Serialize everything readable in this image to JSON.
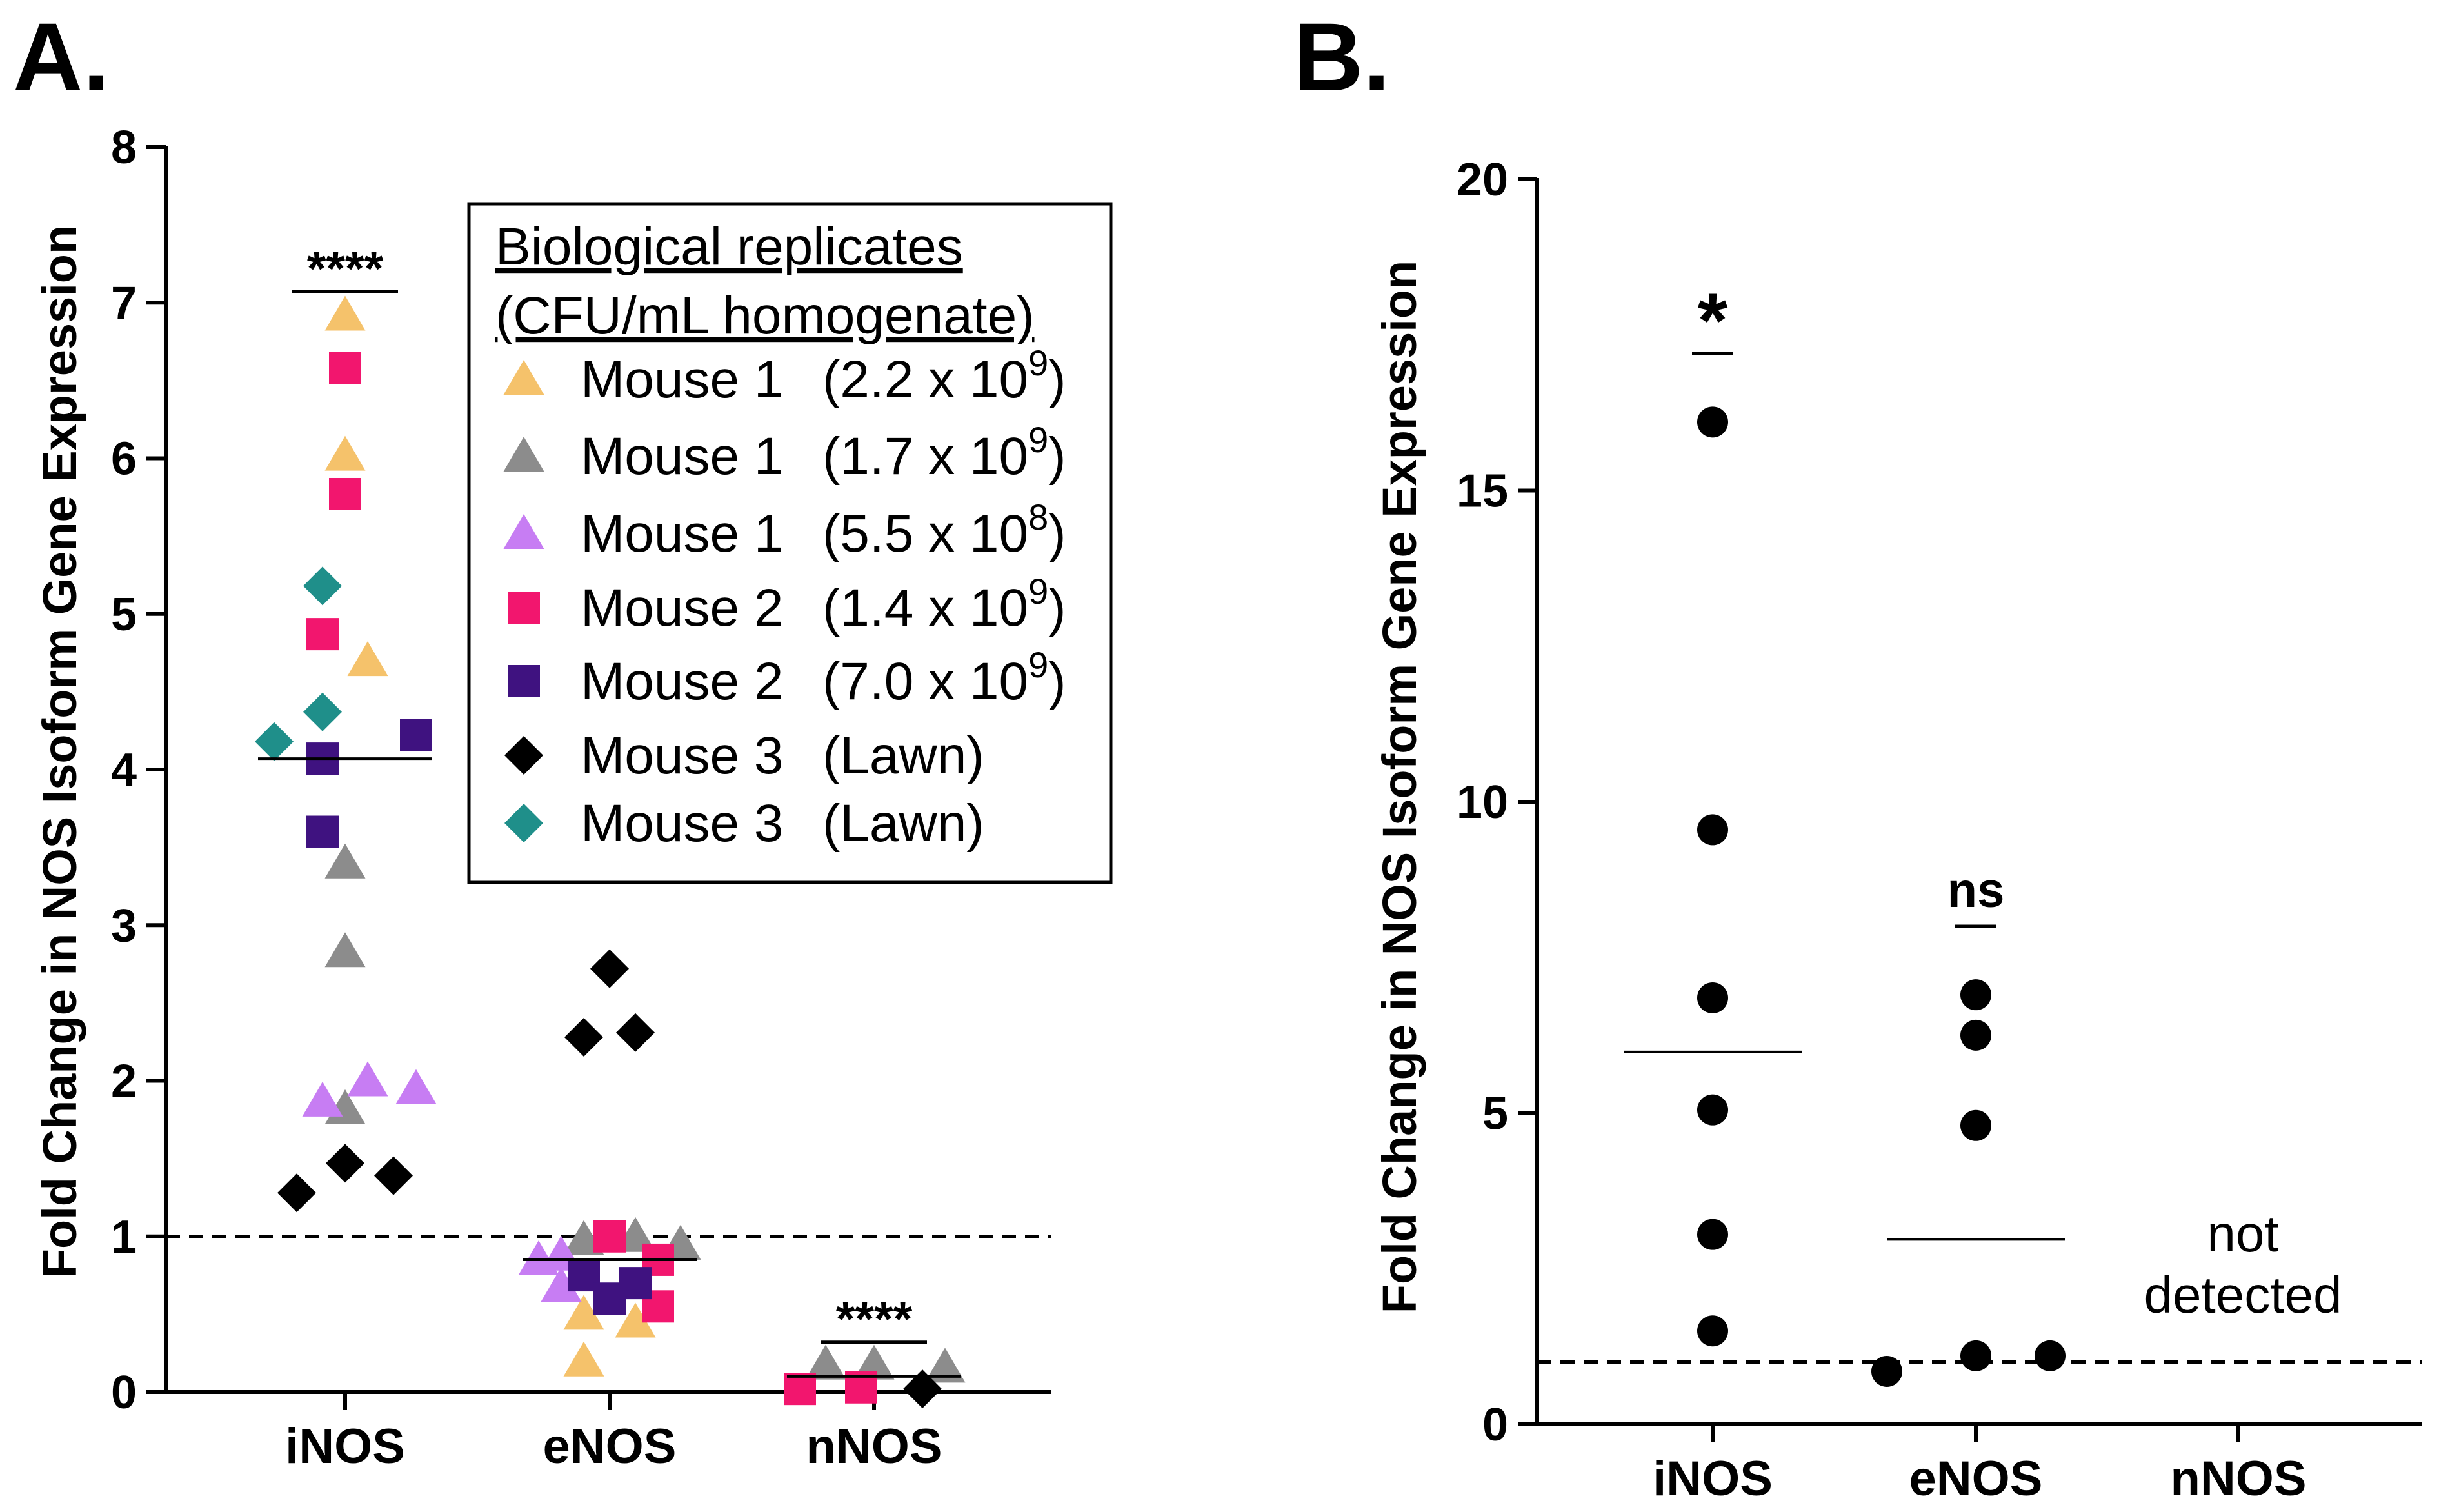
{
  "panels": {
    "A": {
      "letter": "A."
    },
    "B": {
      "letter": "B."
    }
  },
  "chart_data": [
    {
      "type": "scatter",
      "panel": "A.",
      "ylabel": "Fold Change in NOS Isoform Gene Expression",
      "categories": [
        "iNOS",
        "eNOS",
        "nNOS"
      ],
      "ylim": [
        0,
        8
      ],
      "yticks": [
        0,
        1,
        2,
        3,
        4,
        5,
        6,
        7,
        8
      ],
      "reference_line": 1,
      "legend": {
        "title_line1": "Biological replicates",
        "title_line2": "(CFU/mL homogenate)",
        "placement": "top-right"
      },
      "series": [
        {
          "name": "Mouse 1",
          "detail_base": "(2.2 x 10",
          "detail_exp": "9",
          "detail_end": ")",
          "marker": "triangle",
          "color": "#F5C26B",
          "points": [
            [
              "iNOS",
              6.92
            ],
            [
              "iNOS",
              6.02
            ],
            [
              "iNOS",
              4.7
            ],
            [
              "eNOS",
              0.5
            ],
            [
              "eNOS",
              0.2
            ],
            [
              "eNOS",
              0.45
            ]
          ]
        },
        {
          "name": "Mouse 1",
          "detail_base": "(1.7 x 10",
          "detail_exp": "9",
          "detail_end": ")",
          "marker": "triangle",
          "color": "#8C8C8C",
          "points": [
            [
              "iNOS",
              3.4
            ],
            [
              "iNOS",
              2.83
            ],
            [
              "iNOS",
              1.82
            ],
            [
              "eNOS",
              0.98
            ],
            [
              "eNOS",
              1.0
            ],
            [
              "eNOS",
              0.95
            ],
            [
              "nNOS",
              0.18
            ],
            [
              "nNOS",
              0.18
            ],
            [
              "nNOS",
              0.16
            ]
          ]
        },
        {
          "name": "Mouse 1",
          "detail_base": "(5.5 x 10",
          "detail_exp": "8",
          "detail_end": ")",
          "marker": "triangle",
          "color": "#C77DF3",
          "points": [
            [
              "iNOS",
              1.87
            ],
            [
              "iNOS",
              2.0
            ],
            [
              "iNOS",
              1.95
            ],
            [
              "eNOS",
              0.85
            ],
            [
              "eNOS",
              0.88
            ],
            [
              "eNOS",
              0.68
            ]
          ]
        },
        {
          "name": "Mouse 2",
          "detail_base": "(1.4 x 10",
          "detail_exp": "9",
          "detail_end": ")",
          "marker": "square",
          "color": "#F2166E",
          "points": [
            [
              "iNOS",
              6.58
            ],
            [
              "iNOS",
              5.77
            ],
            [
              "iNOS",
              4.87
            ],
            [
              "eNOS",
              1.0
            ],
            [
              "eNOS",
              0.85
            ],
            [
              "eNOS",
              0.55
            ],
            [
              "nNOS",
              0.02
            ],
            [
              "nNOS",
              0.03
            ]
          ]
        },
        {
          "name": "Mouse 2",
          "detail_base": "(7.0 x 10",
          "detail_exp": "9",
          "detail_end": ")",
          "marker": "square",
          "color": "#3F1280",
          "points": [
            [
              "iNOS",
              4.22
            ],
            [
              "iNOS",
              4.07
            ],
            [
              "iNOS",
              3.6
            ],
            [
              "eNOS",
              0.75
            ],
            [
              "eNOS",
              0.6
            ],
            [
              "eNOS",
              0.7
            ]
          ]
        },
        {
          "name": "Mouse 3",
          "detail_base": "(Lawn)",
          "detail_exp": "",
          "detail_end": "",
          "marker": "diamond",
          "color": "#000000",
          "points": [
            [
              "iNOS",
              1.28
            ],
            [
              "iNOS",
              1.47
            ],
            [
              "iNOS",
              1.39
            ],
            [
              "eNOS",
              2.72
            ],
            [
              "eNOS",
              2.28
            ],
            [
              "eNOS",
              2.31
            ],
            [
              "nNOS",
              0.02
            ]
          ]
        },
        {
          "name": "Mouse 3",
          "detail_base": "(Lawn)",
          "detail_exp": "",
          "detail_end": "",
          "marker": "diamond",
          "color": "#1F8F8A",
          "points": [
            [
              "iNOS",
              5.18
            ],
            [
              "iNOS",
              4.37
            ],
            [
              "iNOS",
              4.18
            ]
          ]
        }
      ],
      "means": [
        {
          "category": "iNOS",
          "value": 4.07
        },
        {
          "category": "eNOS",
          "value": 0.85
        },
        {
          "category": "nNOS",
          "value": 0.1
        }
      ],
      "significance": [
        {
          "category": "iNOS",
          "label": "****",
          "y": 7.07
        },
        {
          "category": "nNOS",
          "label": "****",
          "y": 0.32
        }
      ]
    },
    {
      "type": "scatter",
      "panel": "B.",
      "ylabel": "Fold Change in NOS Isoform Gene Expression",
      "categories": [
        "iNOS",
        "eNOS",
        "nNOS"
      ],
      "ylim": [
        0,
        20
      ],
      "yticks": [
        0,
        5,
        10,
        15,
        20
      ],
      "reference_line": 1,
      "series": [
        {
          "marker": "circle",
          "color": "#000000",
          "points": [
            [
              "iNOS",
              16.1
            ],
            [
              "iNOS",
              9.55
            ],
            [
              "iNOS",
              6.85
            ],
            [
              "iNOS",
              5.05
            ],
            [
              "iNOS",
              3.05
            ],
            [
              "iNOS",
              1.5
            ],
            [
              "eNOS",
              6.9
            ],
            [
              "eNOS",
              6.25
            ],
            [
              "eNOS",
              4.8
            ],
            [
              "eNOS",
              0.85
            ],
            [
              "eNOS",
              1.1
            ],
            [
              "eNOS",
              1.1
            ]
          ]
        }
      ],
      "means": [
        {
          "category": "iNOS",
          "value": 5.98
        },
        {
          "category": "eNOS",
          "value": 2.97
        }
      ],
      "significance": [
        {
          "category": "iNOS",
          "label": "*",
          "y": 17.2
        },
        {
          "category": "eNOS",
          "label": "ns",
          "y": 8.0
        }
      ],
      "annotations": {
        "nNOS_line1": "not",
        "nNOS_line2": "detected"
      }
    }
  ]
}
